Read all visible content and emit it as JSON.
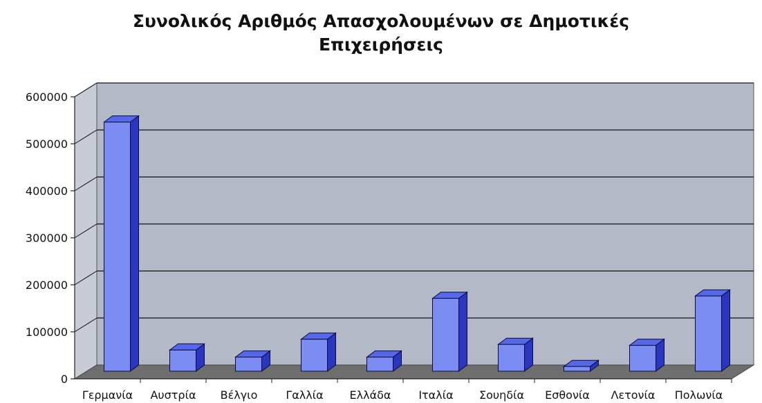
{
  "chart_data": {
    "type": "bar",
    "title": [
      "Συνολικός Αριθμός Απασχολουμένων σε Δημοτικές",
      "Επιχειρήσεις"
    ],
    "categories": [
      "Γερμανία",
      "Αυστρία",
      "Βέλγιο",
      "Γαλλία",
      "Ελλάδα",
      "Ιταλία",
      "Σουηδία",
      "Εσθονία",
      "Λετονία",
      "Πολωνία"
    ],
    "values": [
      530000,
      45000,
      30000,
      68000,
      30000,
      155000,
      57000,
      10000,
      55000,
      160000
    ],
    "ylim": [
      0,
      600000
    ],
    "yticks": [
      "0",
      "100000",
      "200000",
      "300000",
      "400000",
      "500000",
      "600000"
    ],
    "grid": true,
    "three_d": true,
    "colors": {
      "plot_wall": "#b4b9c8",
      "floor": "#6e6e6e",
      "gridline": "#111111",
      "bar_front": "#7b8cf2",
      "bar_top": "#5568e8",
      "bar_side": "#2a35c0"
    }
  }
}
